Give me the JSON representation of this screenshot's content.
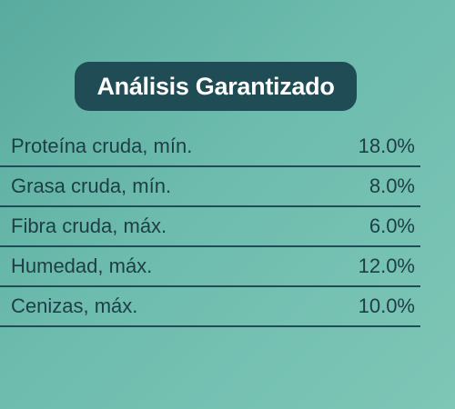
{
  "header": {
    "title": "Análisis Garantizado"
  },
  "table": {
    "rows": [
      [
        "Proteína cruda, mín.",
        "18.0%"
      ],
      [
        "Grasa cruda, mín.",
        "8.0%"
      ],
      [
        "Fibra cruda, máx.",
        "6.0%"
      ],
      [
        "Humedad, máx.",
        "12.0%"
      ],
      [
        "Cenizas, máx.",
        "10.0%"
      ]
    ]
  }
}
